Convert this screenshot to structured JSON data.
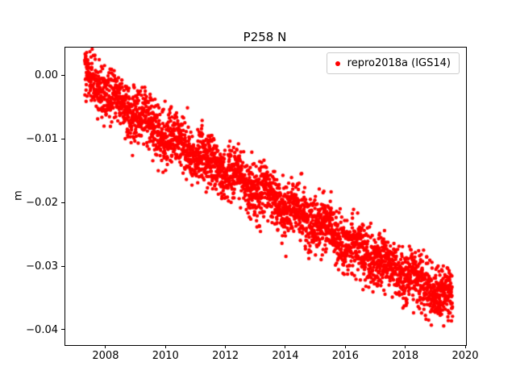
{
  "chart_data": {
    "type": "scatter",
    "title": "P258 N",
    "xlabel": "",
    "ylabel": "m",
    "legend_label": "repro2018a (IGS14)",
    "legend_position": "upper right",
    "grid": false,
    "xlim": [
      2006.63,
      2020.0
    ],
    "ylim": [
      -0.0423,
      0.0045
    ],
    "x_ticks": [
      {
        "value": 2008,
        "label": "2008"
      },
      {
        "value": 2010,
        "label": "2010"
      },
      {
        "value": 2012,
        "label": "2012"
      },
      {
        "value": 2014,
        "label": "2014"
      },
      {
        "value": 2016,
        "label": "2016"
      },
      {
        "value": 2018,
        "label": "2018"
      },
      {
        "value": 2020,
        "label": "2020"
      }
    ],
    "y_ticks": [
      {
        "value": 0.0,
        "label": "0.00"
      },
      {
        "value": -0.01,
        "label": "−0.01"
      },
      {
        "value": -0.02,
        "label": "−0.02"
      },
      {
        "value": -0.03,
        "label": "−0.03"
      },
      {
        "value": -0.04,
        "label": "−0.04"
      }
    ],
    "series": [
      {
        "name": "repro2018a (IGS14)",
        "color": "#ff0000",
        "marker": "dot",
        "marker_radius_px": 2.2,
        "x_start": 2007.28,
        "x_end": 2019.55,
        "n_points": 3200,
        "noise_std": 0.0021,
        "seasonal_amplitude": 0.0008,
        "seasonal_phase": 0.1,
        "seed": 42,
        "trend_anchors": [
          [
            2007.28,
            0.0002
          ],
          [
            2008.0,
            -0.0025
          ],
          [
            2009.0,
            -0.006
          ],
          [
            2010.0,
            -0.0095
          ],
          [
            2011.0,
            -0.0125
          ],
          [
            2012.0,
            -0.0148
          ],
          [
            2013.0,
            -0.0178
          ],
          [
            2014.0,
            -0.0205
          ],
          [
            2015.0,
            -0.0228
          ],
          [
            2016.0,
            -0.0262
          ],
          [
            2017.0,
            -0.0288
          ],
          [
            2018.0,
            -0.0315
          ],
          [
            2019.0,
            -0.0338
          ],
          [
            2019.55,
            -0.0348
          ]
        ],
        "outliers": [
          [
            2009.55,
            -0.0133
          ],
          [
            2012.35,
            -0.0115
          ]
        ]
      }
    ]
  }
}
